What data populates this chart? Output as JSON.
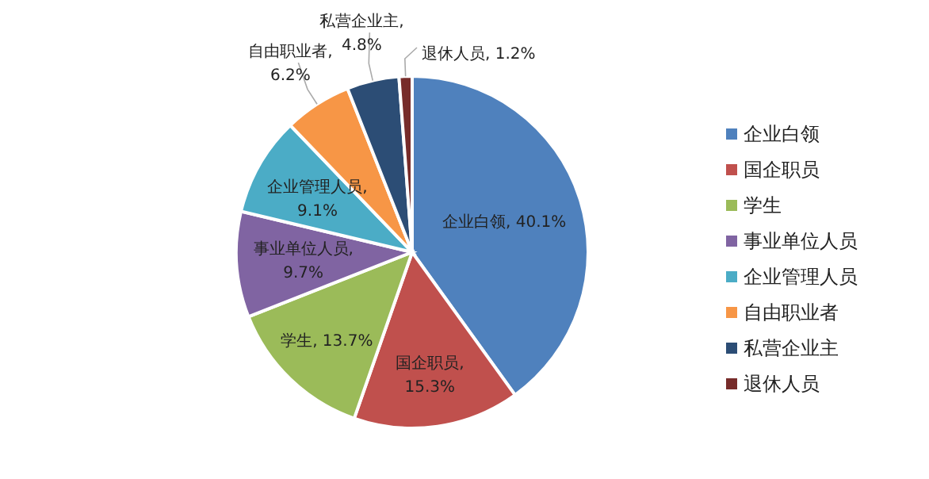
{
  "chart_data": {
    "type": "pie",
    "categories": [
      "企业白领",
      "国企职员",
      "学生",
      "事业单位人员",
      "企业管理人员",
      "自由职业者",
      "私营企业主",
      "退休人员"
    ],
    "values": [
      40.1,
      15.3,
      13.7,
      9.7,
      9.1,
      6.2,
      4.8,
      1.2
    ],
    "colors": [
      "#4f81bd",
      "#c0504d",
      "#9bbb59",
      "#8064a2",
      "#4bacc6",
      "#f79646",
      "#2c4d75",
      "#772c2a"
    ],
    "value_labels": [
      "企业白领, 40.1%",
      "国企职员, 15.3%",
      "学生, 13.7%",
      "事业单位人员, 9.7%",
      "企业管理人员, 9.1%",
      "自由职业者, 6.2%",
      "私营企业主, 4.8%",
      "退休人员, 1.2%"
    ],
    "legend": "right"
  }
}
